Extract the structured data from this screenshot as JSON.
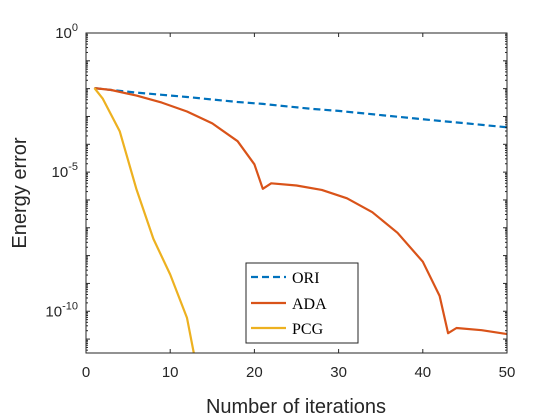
{
  "chart_data": {
    "type": "line",
    "xlabel": "Number of iterations",
    "ylabel": "Energy error",
    "xlim": [
      0,
      50
    ],
    "ylim": [
      3.16e-12,
      1
    ],
    "yscale": "log",
    "xticks": [
      0,
      10,
      20,
      30,
      40,
      50
    ],
    "xtick_labels": [
      "0",
      "10",
      "20",
      "30",
      "40",
      "50"
    ],
    "yticks": [
      1e-10,
      1e-05,
      1
    ],
    "ytick_labels": [
      {
        "base": "10",
        "exp": "-10"
      },
      {
        "base": "10",
        "exp": "-5"
      },
      {
        "base": "10",
        "exp": "0"
      }
    ],
    "grid": false,
    "legend_position": "bottom-center",
    "series": [
      {
        "name": "ORI",
        "color": "#0072BD",
        "style": "dashed",
        "x": [
          1,
          3,
          6,
          9,
          12,
          15,
          18,
          21,
          24,
          27,
          30,
          33,
          36,
          39,
          42,
          45,
          48,
          50
        ],
        "y": [
          0.0105,
          0.00891,
          0.00724,
          0.00603,
          0.00501,
          0.00407,
          0.00331,
          0.00282,
          0.00229,
          0.00186,
          0.00158,
          0.00129,
          0.00105,
          0.000851,
          0.000692,
          0.000575,
          0.000468,
          0.000407
        ]
      },
      {
        "name": "ADA",
        "color": "#D95319",
        "style": "solid",
        "x": [
          1,
          3,
          6,
          9,
          12,
          15,
          18,
          20,
          21,
          22,
          25,
          28,
          31,
          34,
          37,
          40,
          42,
          43,
          44,
          47,
          50
        ],
        "y": [
          0.0105,
          0.00891,
          0.00562,
          0.00316,
          0.00151,
          0.000562,
          0.000129,
          1.91e-05,
          2.51e-06,
          3.98e-06,
          3.31e-06,
          2.29e-06,
          1.15e-06,
          3.63e-07,
          6.61e-08,
          6.03e-09,
          3.55e-10,
          1.62e-11,
          2.51e-11,
          2.09e-11,
          1.51e-11
        ]
      },
      {
        "name": "PCG",
        "color": "#EDB120",
        "style": "solid",
        "x": [
          1,
          2,
          4,
          6,
          8,
          10,
          12,
          12.8
        ],
        "y": [
          0.0105,
          0.00437,
          0.000295,
          2.4e-06,
          3.98e-08,
          2.09e-09,
          5.75e-11,
          3.16e-12
        ]
      }
    ]
  }
}
